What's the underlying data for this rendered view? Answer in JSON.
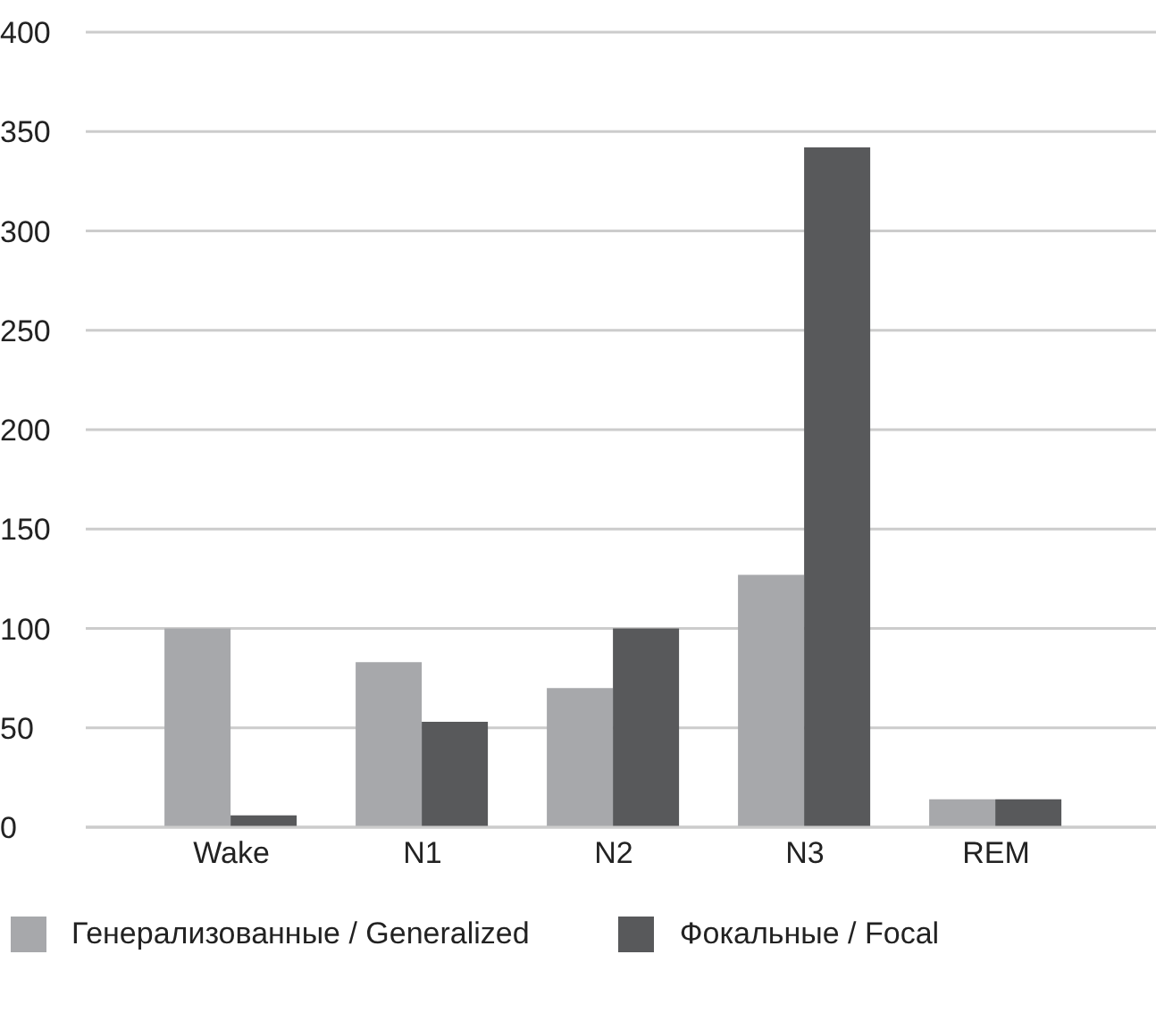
{
  "chart_data": {
    "type": "bar",
    "categories": [
      "Wake",
      "N1",
      "N2",
      "N3",
      "REM"
    ],
    "series": [
      {
        "name": "Генерализованные / Generalized",
        "color": "#a7a8ab",
        "values": [
          100,
          83,
          70,
          127,
          14
        ]
      },
      {
        "name": "Фокальные / Focal",
        "color": "#58595b",
        "values": [
          6,
          53,
          100,
          342,
          14
        ]
      }
    ],
    "ylim": [
      0,
      400
    ],
    "yticks": [
      0,
      50,
      100,
      150,
      200,
      250,
      300,
      350,
      400
    ],
    "grid": "y",
    "legend": "bottom"
  }
}
